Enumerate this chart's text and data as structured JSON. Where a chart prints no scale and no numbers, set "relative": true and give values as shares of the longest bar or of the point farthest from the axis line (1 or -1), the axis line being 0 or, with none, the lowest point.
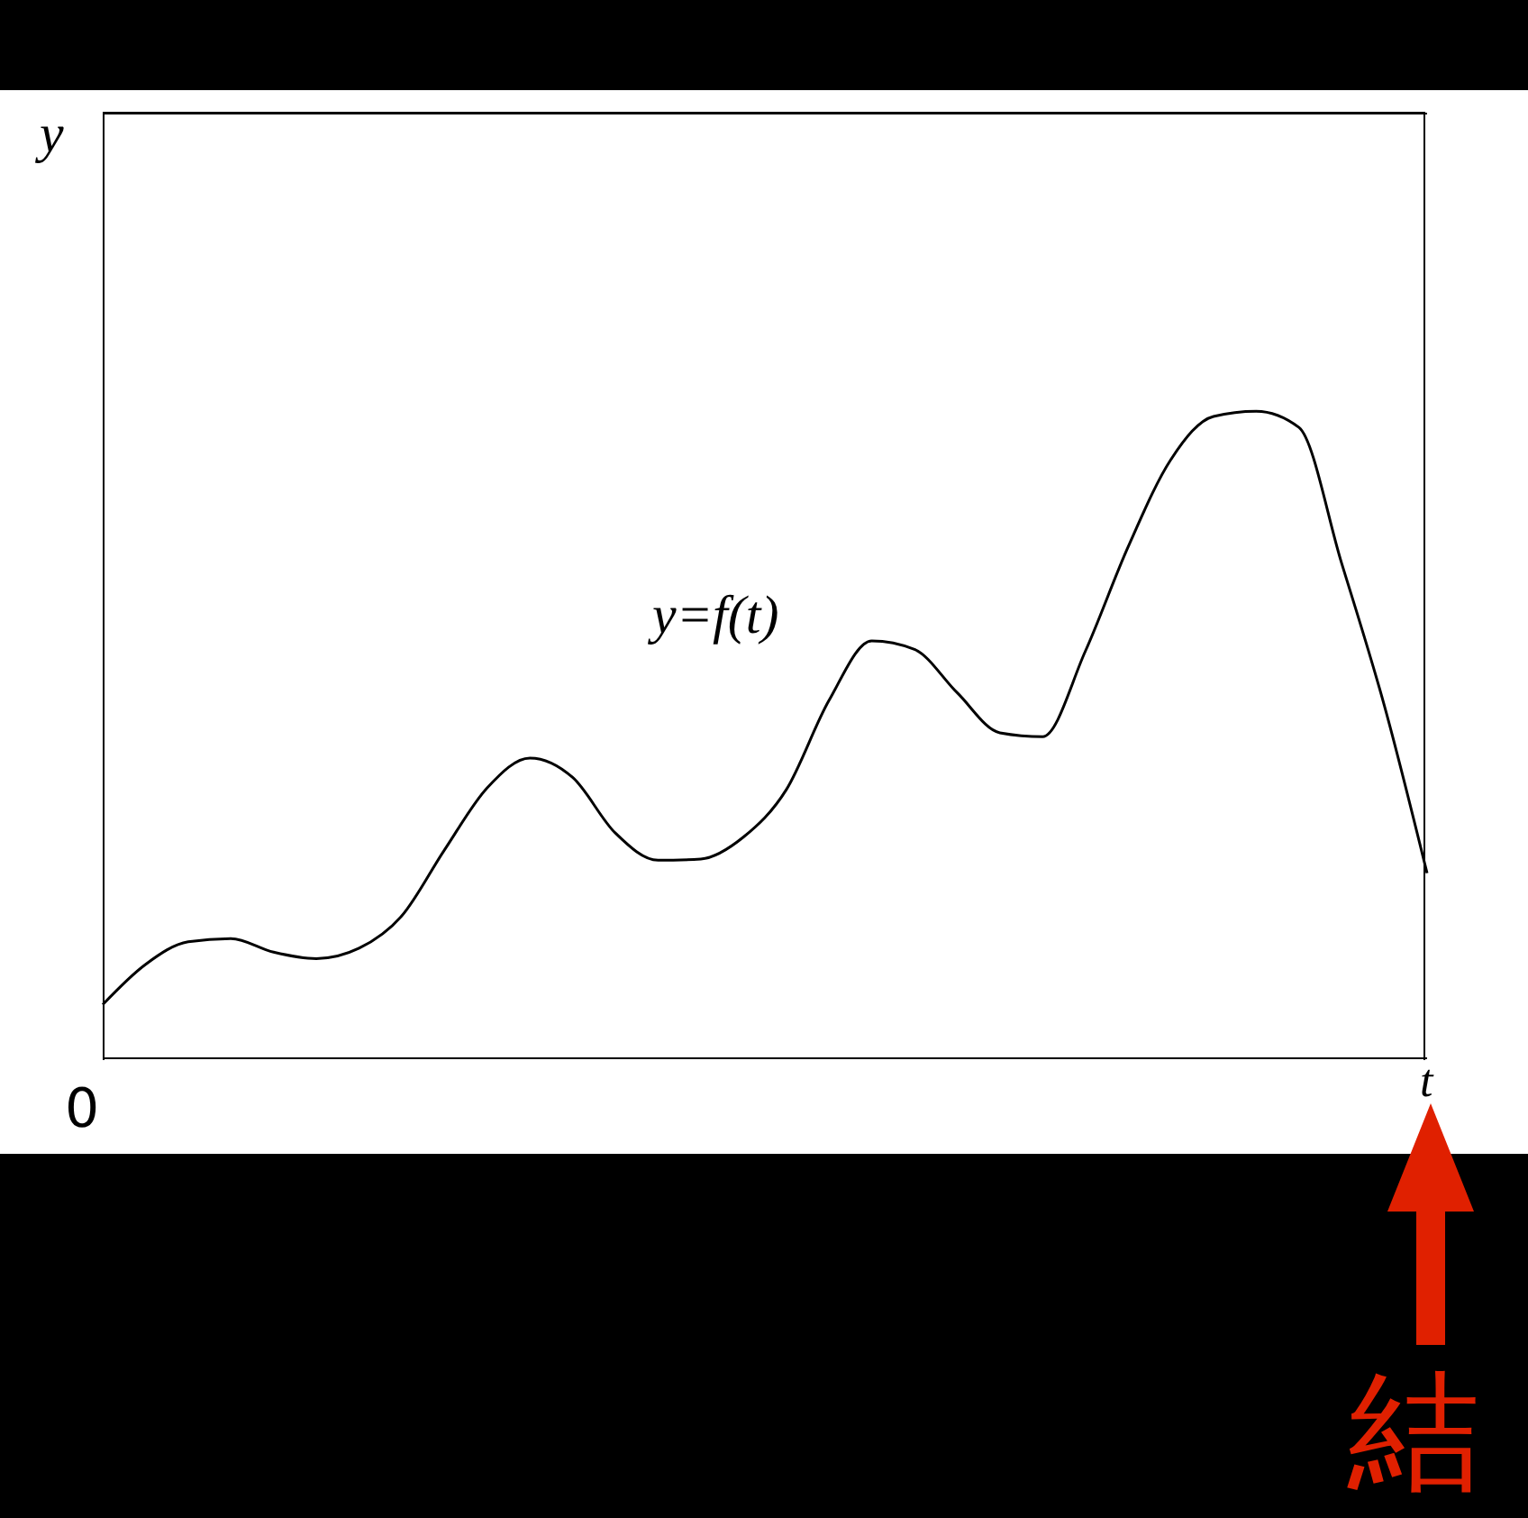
{
  "chart_data": {
    "type": "line",
    "relative": true,
    "xlabel": "t",
    "ylabel": "y",
    "categories": [
      null,
      null,
      null,
      null,
      null,
      null,
      null,
      null,
      null,
      null,
      null,
      null,
      null,
      null,
      null,
      null,
      null,
      null,
      null,
      null,
      null,
      null,
      null,
      null,
      null,
      null,
      null,
      null,
      null,
      null,
      null,
      null
    ],
    "series": [
      {
        "name": "y=f(t)",
        "color": "#000000",
        "values": [
          0.083,
          0.145,
          0.18,
          0.185,
          0.164,
          0.154,
          0.17,
          0.22,
          0.322,
          0.418,
          0.464,
          0.434,
          0.348,
          0.306,
          0.308,
          0.342,
          0.415,
          0.553,
          0.645,
          0.632,
          0.565,
          0.503,
          0.497,
          0.629,
          0.79,
          0.925,
          0.992,
          1,
          0.975,
          0.765,
          0.545,
          0.286
        ]
      }
    ],
    "annotations": [
      "0",
      "結"
    ]
  }
}
